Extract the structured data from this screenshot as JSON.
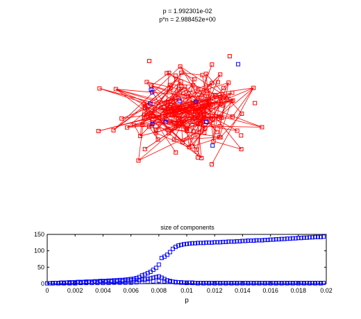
{
  "figure": {
    "title_line1": "p = 1.992301e-02",
    "title_line2": "p*n = 2.988452e+00"
  },
  "chart_data": [
    {
      "type": "scatter",
      "title": "p = 1.992301e-02 / p*n = 2.988452e+00",
      "description_type": "random graph drawing (nodes with edges)",
      "node_color": "#ff0000",
      "minor_node_color": "#0000ff",
      "edge_color": "#ff0000",
      "node_count_red": 140,
      "node_count_blue": 10,
      "axes": "off"
    },
    {
      "type": "scatter",
      "title": "size of components",
      "xlabel": "p",
      "ylabel": "",
      "xlim": [
        0,
        0.02
      ],
      "ylim": [
        0,
        150
      ],
      "xticks": [
        "0",
        "0.002",
        "0.004",
        "0.006",
        "0.008",
        "0.01",
        "0.012",
        "0.014",
        "0.016",
        "0.018",
        "0.02"
      ],
      "yticks": [
        "0",
        "50",
        "100",
        "150"
      ],
      "marker_color": "#0000ff",
      "series": [
        {
          "x": [
            0.0,
            0.0002,
            0.0004,
            0.0006,
            0.0008,
            0.001,
            0.0012,
            0.0014,
            0.0016,
            0.0018,
            0.002,
            0.0022,
            0.0024,
            0.0026,
            0.0028,
            0.003,
            0.0032,
            0.0034,
            0.0036,
            0.0038,
            0.004,
            0.0042,
            0.0044,
            0.0046,
            0.0048,
            0.005,
            0.0052,
            0.0054,
            0.0056,
            0.0058,
            0.006,
            0.0062,
            0.0064,
            0.0066,
            0.0068,
            0.007,
            0.0072,
            0.0074,
            0.0076,
            0.0078,
            0.008,
            0.0082,
            0.0084,
            0.0086,
            0.0088,
            0.009,
            0.0092,
            0.0094,
            0.0096,
            0.0098,
            0.01,
            0.0102,
            0.0104,
            0.0106,
            0.0108,
            0.011,
            0.0112,
            0.0114,
            0.0116,
            0.0118,
            0.012,
            0.0122,
            0.0124,
            0.0126,
            0.0128,
            0.013,
            0.0132,
            0.0134,
            0.0136,
            0.0138,
            0.014,
            0.0142,
            0.0144,
            0.0146,
            0.0148,
            0.015,
            0.0152,
            0.0154,
            0.0156,
            0.0158,
            0.016,
            0.0162,
            0.0164,
            0.0166,
            0.0168,
            0.017,
            0.0172,
            0.0174,
            0.0176,
            0.0178,
            0.018,
            0.0182,
            0.0184,
            0.0186,
            0.0188,
            0.019,
            0.0192,
            0.0194,
            0.0196,
            0.0198
          ],
          "y": [
            1,
            1,
            2,
            2,
            2,
            3,
            3,
            3,
            4,
            4,
            4,
            5,
            5,
            5,
            6,
            6,
            6,
            7,
            7,
            8,
            8,
            8,
            9,
            9,
            10,
            10,
            11,
            11,
            12,
            13,
            14,
            15,
            17,
            20,
            25,
            28,
            32,
            36,
            42,
            48,
            58,
            78,
            82,
            88,
            96,
            106,
            112,
            116,
            118,
            120,
            121,
            122,
            123,
            123,
            124,
            124,
            124,
            125,
            125,
            125,
            126,
            126,
            126,
            127,
            127,
            128,
            128,
            128,
            129,
            129,
            130,
            130,
            131,
            131,
            131,
            132,
            132,
            132,
            133,
            133,
            134,
            134,
            135,
            135,
            136,
            136,
            137,
            137,
            138,
            138,
            139,
            139,
            140,
            140,
            141,
            141,
            142,
            142,
            142,
            143
          ]
        },
        {
          "x": [
            0.0,
            0.0002,
            0.0004,
            0.0006,
            0.0008,
            0.001,
            0.0012,
            0.0014,
            0.0016,
            0.0018,
            0.002,
            0.0022,
            0.0024,
            0.0026,
            0.0028,
            0.003,
            0.0032,
            0.0034,
            0.0036,
            0.0038,
            0.004,
            0.0042,
            0.0044,
            0.0046,
            0.0048,
            0.005,
            0.0052,
            0.0054,
            0.0056,
            0.0058,
            0.006,
            0.0062,
            0.0064,
            0.0066,
            0.0068,
            0.007,
            0.0072,
            0.0074,
            0.0076,
            0.0078,
            0.008,
            0.0082,
            0.0084,
            0.0086,
            0.0088,
            0.009,
            0.0092,
            0.0094,
            0.0096,
            0.0098,
            0.01,
            0.0102,
            0.0104,
            0.0106,
            0.0108,
            0.011,
            0.0112,
            0.0114,
            0.0116,
            0.0118,
            0.012,
            0.0122,
            0.0124,
            0.0126,
            0.0128,
            0.013,
            0.0132,
            0.0134,
            0.0136,
            0.0138,
            0.014,
            0.0142,
            0.0144,
            0.0146,
            0.0148,
            0.015,
            0.0152,
            0.0154,
            0.0156,
            0.0158,
            0.016,
            0.0162,
            0.0164,
            0.0166,
            0.0168,
            0.017,
            0.0172,
            0.0174,
            0.0176,
            0.0178,
            0.018,
            0.0182,
            0.0184,
            0.0186,
            0.0188,
            0.019,
            0.0192,
            0.0194,
            0.0196,
            0.0198
          ],
          "y": [
            1,
            1,
            1,
            2,
            2,
            2,
            2,
            3,
            3,
            3,
            3,
            4,
            4,
            4,
            4,
            5,
            5,
            5,
            5,
            6,
            6,
            6,
            7,
            7,
            7,
            8,
            8,
            8,
            9,
            9,
            10,
            10,
            11,
            11,
            12,
            13,
            14,
            16,
            18,
            20,
            22,
            18,
            14,
            10,
            8,
            6,
            5,
            4,
            4,
            3,
            3,
            3,
            3,
            2,
            2,
            2,
            2,
            2,
            2,
            2,
            2,
            2,
            2,
            2,
            2,
            2,
            2,
            2,
            2,
            2,
            2,
            2,
            2,
            2,
            2,
            2,
            2,
            2,
            2,
            2,
            2,
            2,
            2,
            2,
            2,
            2,
            2,
            2,
            2,
            2,
            2,
            2,
            2,
            2,
            2,
            2,
            2,
            2,
            2,
            2
          ]
        },
        {
          "x": [
            0.0,
            0.0004,
            0.0008,
            0.0012,
            0.0016,
            0.002,
            0.0024,
            0.0028,
            0.0032,
            0.0036,
            0.004,
            0.0044,
            0.0048,
            0.0052,
            0.0056,
            0.006,
            0.0064,
            0.0068,
            0.0072,
            0.0076,
            0.008,
            0.0084,
            0.0088,
            0.0092,
            0.0096,
            0.01,
            0.0104,
            0.0108,
            0.0112,
            0.0116,
            0.012,
            0.0124,
            0.0128,
            0.0132,
            0.0136,
            0.014,
            0.0144,
            0.0148,
            0.0152,
            0.0156,
            0.016,
            0.0164,
            0.0168,
            0.0172,
            0.0176,
            0.018,
            0.0184,
            0.0188,
            0.0192,
            0.0196
          ],
          "y": [
            1,
            1,
            1,
            1,
            1,
            1,
            2,
            2,
            2,
            2,
            2,
            2,
            3,
            3,
            3,
            3,
            4,
            5,
            6,
            7,
            8,
            7,
            6,
            4,
            3,
            2,
            2,
            1,
            1,
            1,
            1,
            1,
            1,
            1,
            1,
            1,
            1,
            1,
            1,
            1,
            1,
            1,
            1,
            1,
            1,
            1,
            1,
            1,
            1,
            1
          ]
        }
      ]
    }
  ]
}
